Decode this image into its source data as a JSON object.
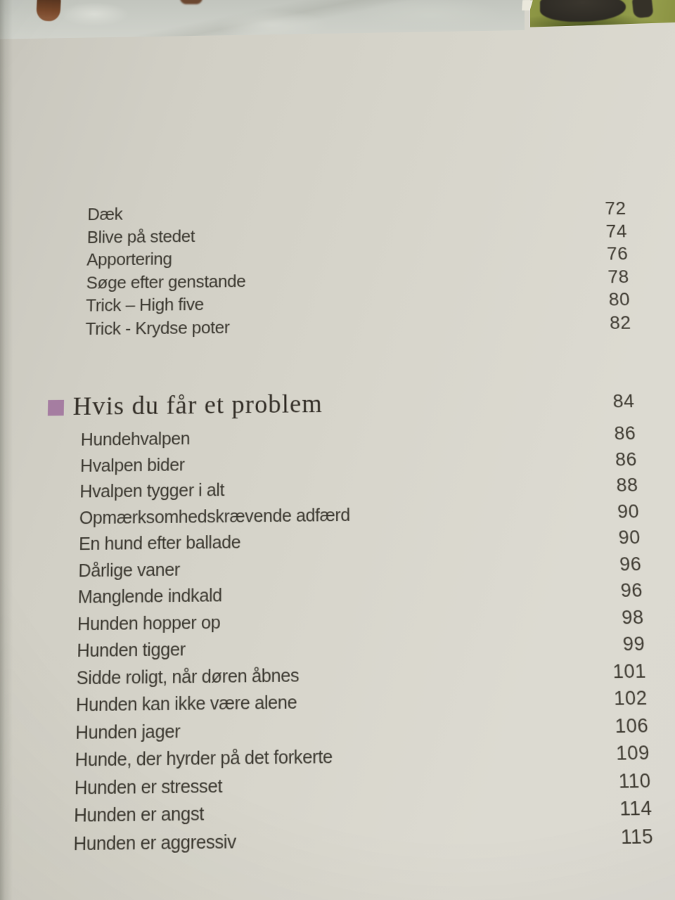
{
  "document": {
    "kind": "book table of contents (photo of printed page)",
    "language": "Danish"
  },
  "photo_strip": {
    "left_photo": "dog-paws-on-snowy-ground-photo",
    "right_photo": "black-dog-lying-on-green-grass-photo"
  },
  "toc": {
    "group1": {
      "items": [
        {
          "label": "Dæk",
          "page": "72"
        },
        {
          "label": "Blive på stedet",
          "page": "74"
        },
        {
          "label": "Apportering",
          "page": "76"
        },
        {
          "label": "Søge efter genstande",
          "page": "78"
        },
        {
          "label": "Trick – High five",
          "page": "80"
        },
        {
          "label": "Trick - Krydse poter",
          "page": "82"
        }
      ]
    },
    "section_header": {
      "label": "Hvis du får et problem",
      "page": "84"
    },
    "group2": {
      "items": [
        {
          "label": "Hundehvalpen",
          "page": "86"
        },
        {
          "label": "Hvalpen bider",
          "page": "86"
        },
        {
          "label": "Hvalpen tygger i alt",
          "page": "88"
        },
        {
          "label": "Opmærksomhedskrævende adfærd",
          "page": "90"
        },
        {
          "label": "En hund efter ballade",
          "page": "90"
        },
        {
          "label": "Dårlige vaner",
          "page": "96"
        },
        {
          "label": "Manglende indkald",
          "page": "96"
        },
        {
          "label": "Hunden hopper op",
          "page": "98"
        },
        {
          "label": "Hunden tigger",
          "page": "99"
        },
        {
          "label": "Sidde roligt, når døren åbnes",
          "page": "101"
        },
        {
          "label": "Hunden kan ikke være alene",
          "page": "102"
        },
        {
          "label": "Hunden jager",
          "page": "106"
        },
        {
          "label": "Hunde, der hyrder på det forkerte",
          "page": "109"
        },
        {
          "label": "Hunden er stresset",
          "page": "110"
        },
        {
          "label": "Hunden er angst",
          "page": "114"
        },
        {
          "label": "Hunden er aggressiv",
          "page": "115"
        }
      ]
    }
  },
  "colors": {
    "page_background": "#d6d4ca",
    "text": "#3a372f",
    "section_header_text": "#322d26",
    "section_bullet": "#a57da1",
    "grass": "#828c3e",
    "snow_ground": "#cbcdc6",
    "dog_fur_brown": "#754629",
    "dog_fur_black": "#2d2a24"
  }
}
